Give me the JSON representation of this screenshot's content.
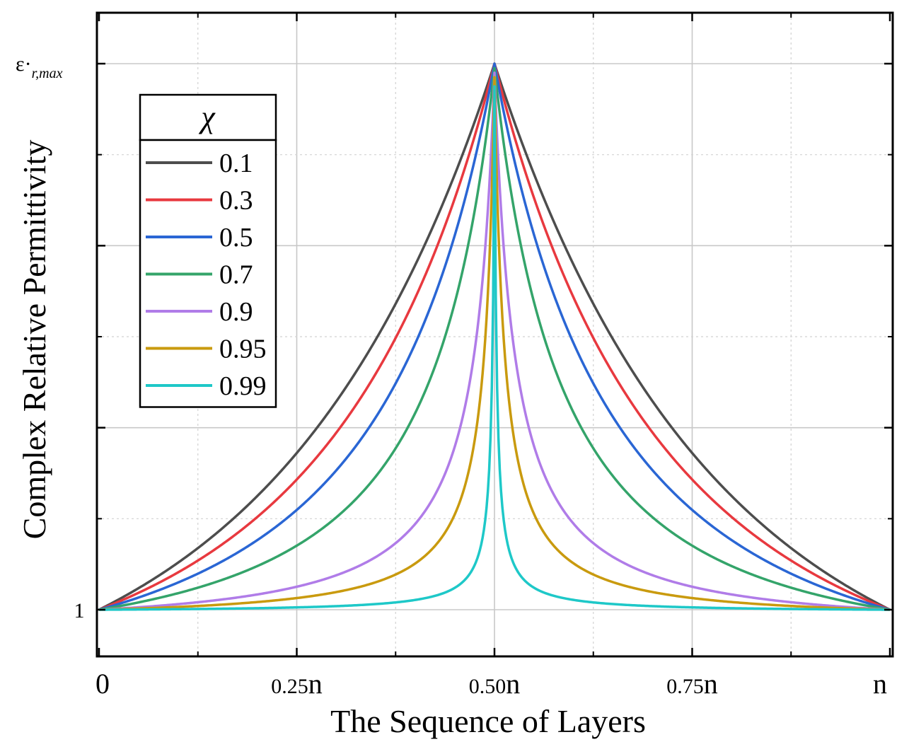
{
  "chart_data": {
    "type": "line",
    "xlabel": "The Sequence of Layers",
    "ylabel": "Complex Relative Permittivity",
    "x_ticks": [
      {
        "value": 0,
        "label": "0"
      },
      {
        "value": 0.25,
        "label": "0.25n"
      },
      {
        "value": 0.5,
        "label": "0.50n"
      },
      {
        "value": 0.75,
        "label": "0.75n"
      },
      {
        "value": 1.0,
        "label": "n"
      }
    ],
    "y_ticks": [
      {
        "value": 1,
        "label": "1"
      },
      {
        "value": 7,
        "label": "ε·r,max"
      }
    ],
    "ymax_label": {
      "main": "ε·",
      "sub": "r,max"
    },
    "xlim": [
      -0.005,
      1.0
    ],
    "ylim": [
      0.5,
      7.3
    ],
    "grid": true,
    "legend": {
      "title": "χ",
      "placement": "top-left"
    },
    "series": [
      {
        "name": "0.1",
        "chi": 0.1,
        "color": "#4d4d4d"
      },
      {
        "name": "0.3",
        "chi": 0.3,
        "color": "#e8393f"
      },
      {
        "name": "0.5",
        "chi": 0.5,
        "color": "#2a66d4"
      },
      {
        "name": "0.7",
        "chi": 0.7,
        "color": "#34a46a"
      },
      {
        "name": "0.9",
        "chi": 0.9,
        "color": "#b07ce8"
      },
      {
        "name": "0.95",
        "chi": 0.95,
        "color": "#c99a0e"
      },
      {
        "name": "0.99",
        "chi": 0.99,
        "color": "#1ec8c8"
      }
    ],
    "peak_values": [
      7.0,
      7.0,
      7.0,
      6.95,
      6.9,
      6.85,
      6.75
    ],
    "shape_exponent_note": "symmetric peak at x = 0.50n, value 1 at x = 0 and x = n"
  }
}
